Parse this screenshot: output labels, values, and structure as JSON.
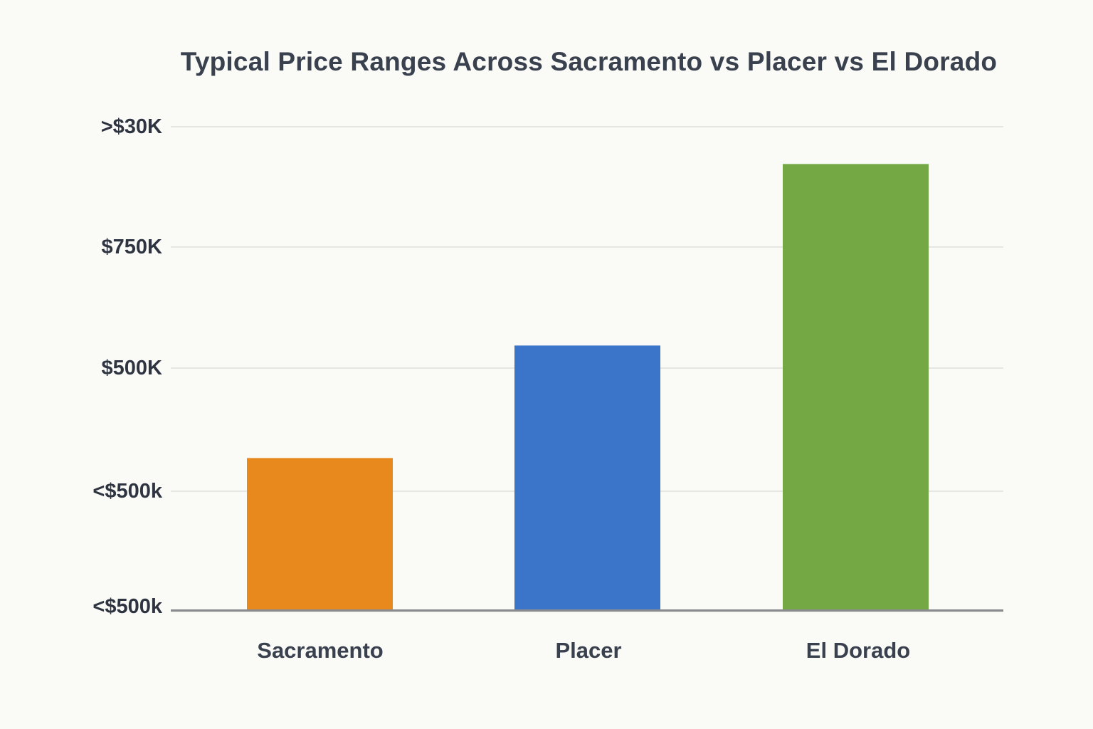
{
  "chart_data": {
    "type": "bar",
    "title": "Typical Price Ranges Across Sacramento vs Placer vs El Dorado",
    "categories": [
      "Sacramento",
      "Placer",
      "El Dorado"
    ],
    "values": [
      1.25,
      2.18,
      3.68
    ],
    "value_unit": "y-axis gridline intervals above baseline",
    "y_tick_labels_bottom_to_top": [
      "<$500k",
      "<$500k",
      "$500K",
      "$750K",
      ">$30K"
    ],
    "ylim": [
      0,
      4
    ],
    "xlabel": "",
    "ylabel": "",
    "grid": true,
    "legend": false,
    "bar_colors": [
      "#e8891e",
      "#3b75c9",
      "#74a845"
    ],
    "background_color": "#fafaf7",
    "axis_line_color": "#8a8d90",
    "gridline_color": "#e6e6e3",
    "text_color": "#3a414e"
  }
}
